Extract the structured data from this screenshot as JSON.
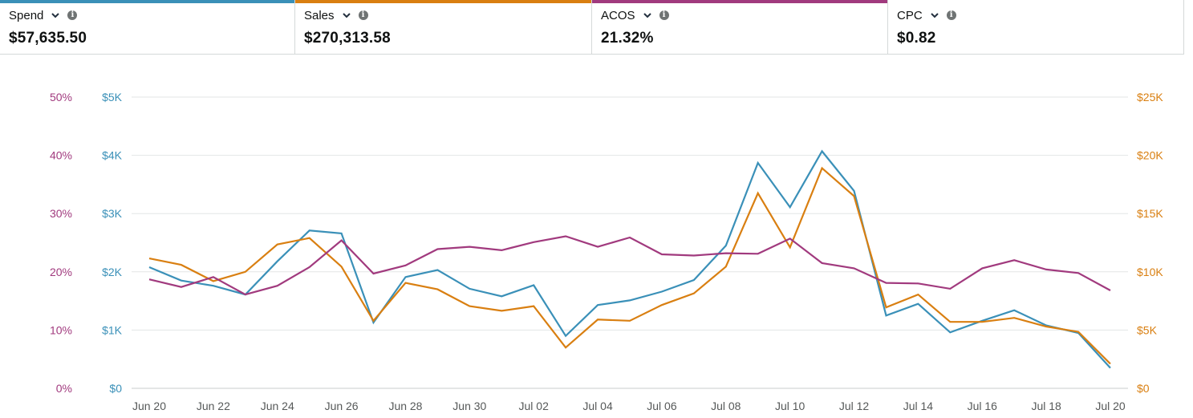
{
  "metrics": [
    {
      "label": "Spend",
      "value": "$57,635.50",
      "color": "#3a90b8"
    },
    {
      "label": "Sales",
      "value": "$270,313.58",
      "color": "#d97f11"
    },
    {
      "label": "ACOS",
      "value": "21.32%",
      "color": "#a13a7e"
    },
    {
      "label": "CPC",
      "value": "$0.82",
      "color": null
    }
  ],
  "chart_data": {
    "type": "line",
    "grid": true,
    "x": [
      "Jun 20",
      "Jun 21",
      "Jun 22",
      "Jun 23",
      "Jun 24",
      "Jun 25",
      "Jun 26",
      "Jun 27",
      "Jun 28",
      "Jun 29",
      "Jun 30",
      "Jul 01",
      "Jul 02",
      "Jul 03",
      "Jul 04",
      "Jul 05",
      "Jul 06",
      "Jul 07",
      "Jul 08",
      "Jul 09",
      "Jul 10",
      "Jul 11",
      "Jul 12",
      "Jul 13",
      "Jul 14",
      "Jul 15",
      "Jul 16",
      "Jul 17",
      "Jul 18",
      "Jul 19",
      "Jul 20"
    ],
    "x_tick_labels": [
      "Jun 20",
      "Jun 22",
      "Jun 24",
      "Jun 26",
      "Jun 28",
      "Jun 30",
      "Jul 02",
      "Jul 04",
      "Jul 06",
      "Jul 08",
      "Jul 10",
      "Jul 12",
      "Jul 14",
      "Jul 16",
      "Jul 18",
      "Jul 20"
    ],
    "axes": {
      "acos": {
        "ticks": [
          "0%",
          "10%",
          "20%",
          "30%",
          "40%",
          "50%"
        ],
        "range": [
          0,
          50
        ],
        "color": "#a13a7e"
      },
      "spend": {
        "ticks": [
          "$0",
          "$1K",
          "$2K",
          "$3K",
          "$4K",
          "$5K"
        ],
        "range": [
          0,
          5000
        ],
        "color": "#3a90b8"
      },
      "sales": {
        "ticks": [
          "$0",
          "$5K",
          "$10K",
          "$15K",
          "$20K",
          "$25K"
        ],
        "range": [
          0,
          25000
        ],
        "color": "#d97f11"
      }
    },
    "series": [
      {
        "name": "Spend",
        "axis": "spend",
        "color": "#3a90b8",
        "values": [
          2080,
          1850,
          1760,
          1610,
          2180,
          2710,
          2660,
          1130,
          1910,
          2030,
          1710,
          1580,
          1770,
          900,
          1430,
          1510,
          1660,
          1860,
          2450,
          3870,
          3110,
          4070,
          3390,
          1250,
          1450,
          960,
          1160,
          1340,
          1080,
          950,
          350
        ]
      },
      {
        "name": "Sales",
        "axis": "sales",
        "color": "#d97f11",
        "values": [
          11150,
          10600,
          9200,
          10000,
          12350,
          12900,
          10450,
          5800,
          9050,
          8500,
          7050,
          6650,
          7050,
          3500,
          5900,
          5800,
          7150,
          8150,
          10450,
          16750,
          12100,
          18900,
          16500,
          6950,
          8050,
          5700,
          5700,
          6050,
          5300,
          4850,
          2100
        ]
      },
      {
        "name": "ACOS",
        "axis": "acos",
        "color": "#a13a7e",
        "values": [
          18.7,
          17.4,
          19.1,
          16.1,
          17.6,
          20.8,
          25.4,
          19.7,
          21.1,
          23.9,
          24.3,
          23.7,
          25.1,
          26.1,
          24.3,
          25.9,
          23.0,
          22.8,
          23.2,
          23.1,
          25.7,
          21.5,
          20.6,
          18.1,
          18.0,
          17.1,
          20.6,
          22.0,
          20.4,
          19.8,
          16.8
        ]
      }
    ]
  }
}
